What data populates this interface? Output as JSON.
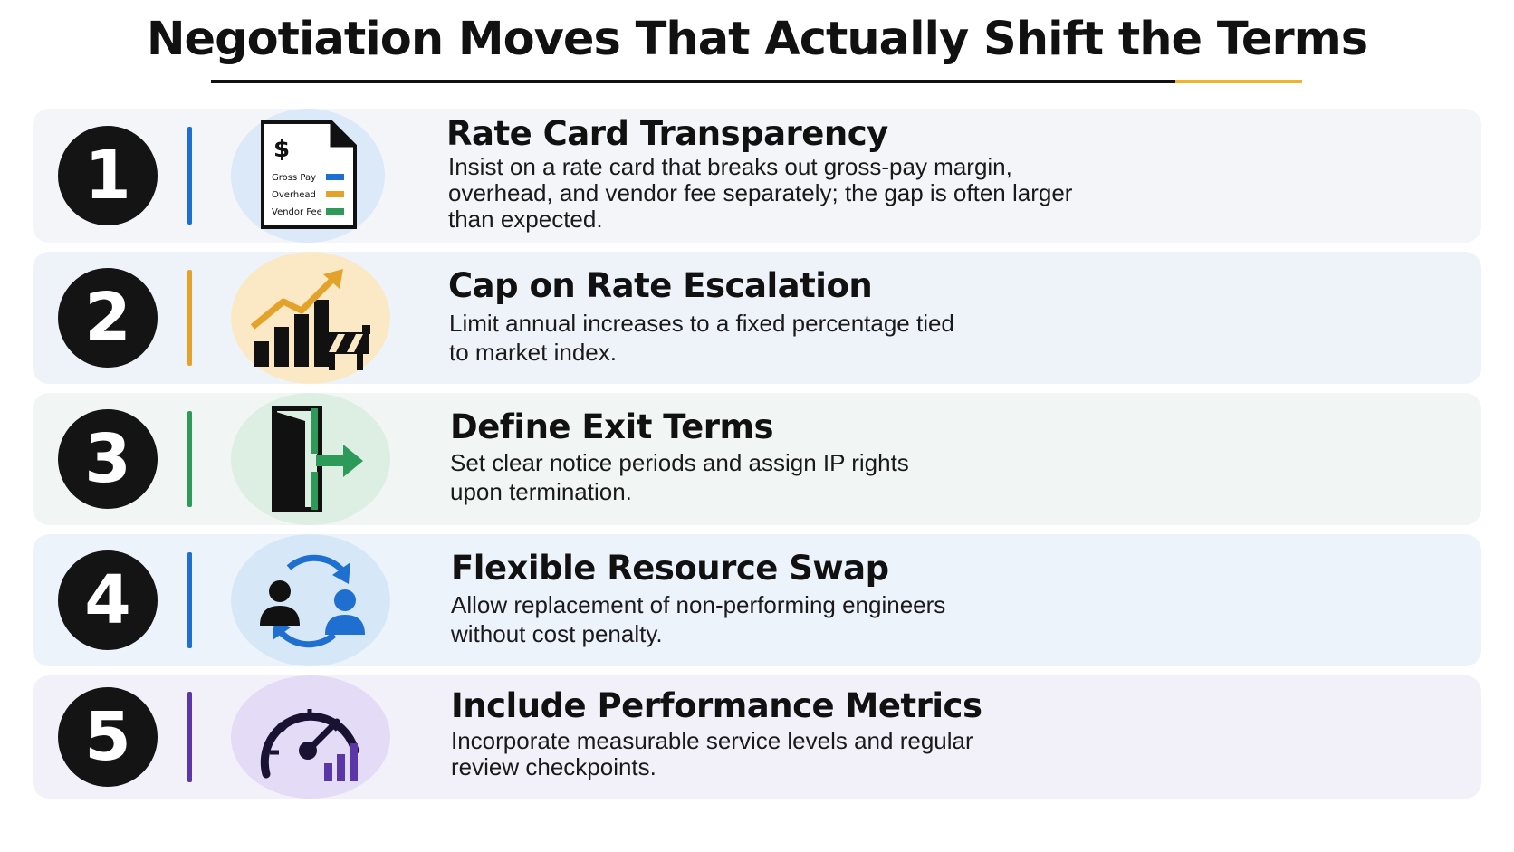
{
  "title": "Negotiation Moves That Actually Shift the Terms",
  "items": [
    {
      "number": "1",
      "heading": "Rate Card Transparency",
      "description": "Insist on a rate card that breaks out gross-pay margin, overhead, and vendor fee separately; the gap is often larger than expected.",
      "icon": "rate-card-document-icon",
      "accent": "#1f6fd1",
      "card_labels": {
        "symbol": "$",
        "gross_pay": "Gross Pay",
        "overhead": "Overhead",
        "vendor_fee": "Vendor Fee"
      }
    },
    {
      "number": "2",
      "heading": "Cap on Rate Escalation",
      "description": "Limit annual increases to a fixed percentage tied to market index.",
      "icon": "capped-growth-chart-icon",
      "accent": "#e3a32a"
    },
    {
      "number": "3",
      "heading": "Define Exit Terms",
      "description": "Set clear notice periods and assign IP rights upon termination.",
      "icon": "exit-door-icon",
      "accent": "#2e9a5a"
    },
    {
      "number": "4",
      "heading": "Flexible Resource Swap",
      "description": "Allow replacement of non-performing engineers without cost penalty.",
      "icon": "resource-swap-icon",
      "accent": "#1f6fd1"
    },
    {
      "number": "5",
      "heading": "Include Performance Metrics",
      "description": "Incorporate measurable service levels and regular review checkpoints.",
      "icon": "performance-gauge-icon",
      "accent": "#5a36a8"
    }
  ],
  "colors": {
    "row_backgrounds": [
      "#f3f5f8",
      "#eef3fa",
      "#f1f5f3",
      "#edf3fb",
      "#f2f1fa"
    ],
    "icon_backgrounds": [
      "#dbe9f8",
      "#fbe9c6",
      "#dcefe2",
      "#d6e8f8",
      "#e4dbf6"
    ]
  }
}
